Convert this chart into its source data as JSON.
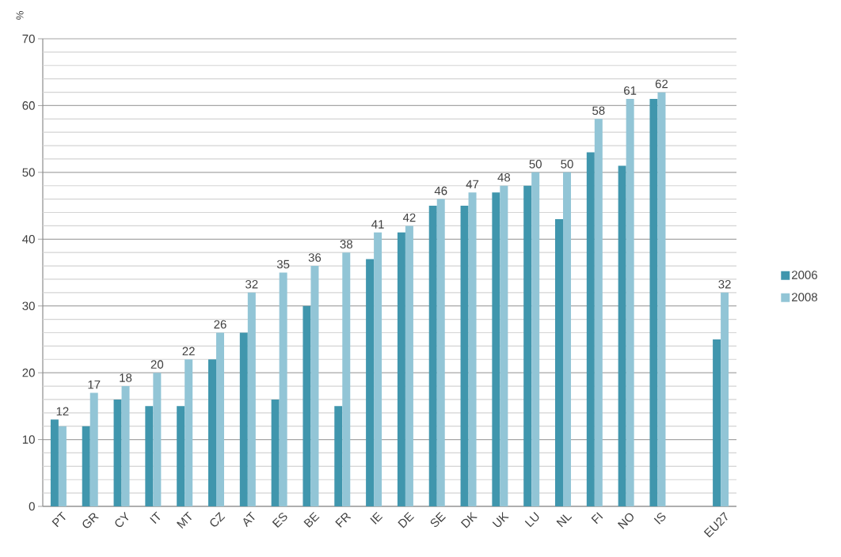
{
  "chart_data": {
    "type": "bar",
    "ylabel": "%",
    "categories": [
      "PT",
      "GR",
      "CY",
      "IT",
      "MT",
      "CZ",
      "AT",
      "ES",
      "BE",
      "FR",
      "IE",
      "DE",
      "SE",
      "DK",
      "UK",
      "LU",
      "NL",
      "FI",
      "NO",
      "IS",
      null,
      "EU27"
    ],
    "series": [
      {
        "name": "2006",
        "color": "#4096ad",
        "values": [
          13,
          12,
          16,
          15,
          15,
          22,
          26,
          16,
          30,
          15,
          37,
          41,
          45,
          45,
          47,
          48,
          43,
          53,
          51,
          61,
          null,
          25
        ]
      },
      {
        "name": "2008",
        "color": "#92c5d6",
        "values": [
          12,
          17,
          18,
          20,
          22,
          26,
          32,
          35,
          36,
          38,
          41,
          42,
          46,
          47,
          48,
          50,
          50,
          58,
          61,
          62,
          null,
          32
        ],
        "value_labels": [
          "12",
          "17",
          "18",
          "20",
          "22",
          "26",
          "32",
          "35",
          "36",
          "38",
          "41",
          "42",
          "46",
          "47",
          "48",
          "50",
          "50",
          "58",
          "61",
          "62",
          null,
          "32"
        ]
      }
    ],
    "ylim": [
      0,
      70
    ],
    "yticks": [
      0,
      {
        "value": 2,
        "label": null
      },
      {
        "value": 4,
        "label": null
      },
      {
        "value": 6,
        "label": null
      },
      {
        "value": 8,
        "label": null
      },
      10,
      {
        "value": 12,
        "label": null
      },
      {
        "value": 14,
        "label": null
      },
      {
        "value": 16,
        "label": null
      },
      {
        "value": 18,
        "label": null
      },
      20,
      {
        "value": 22,
        "label": null
      },
      {
        "value": 24,
        "label": null
      },
      {
        "value": 26,
        "label": null
      },
      {
        "value": 28,
        "label": null
      },
      30,
      {
        "value": 32,
        "label": null
      },
      {
        "value": 34,
        "label": null
      },
      {
        "value": 36,
        "label": null
      },
      {
        "value": 38,
        "label": null
      },
      40,
      {
        "value": 42,
        "label": null
      },
      {
        "value": 44,
        "label": null
      },
      {
        "value": 46,
        "label": null
      },
      {
        "value": 48,
        "label": null
      },
      50,
      {
        "value": 52,
        "label": null
      },
      {
        "value": 54,
        "label": null
      },
      {
        "value": 56,
        "label": null
      },
      {
        "value": 58,
        "label": null
      },
      60,
      {
        "value": 62,
        "label": null
      },
      {
        "value": 64,
        "label": null
      },
      {
        "value": 66,
        "label": null
      },
      {
        "value": 68,
        "label": null
      },
      70
    ],
    "grid": "y",
    "legend": "right"
  }
}
